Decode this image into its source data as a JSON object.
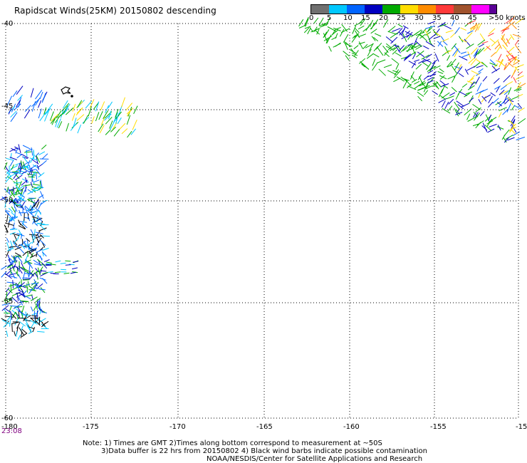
{
  "title": "Rapidscat Winds(25KM) 20150802 descending",
  "legend": {
    "labels": [
      "0",
      "5",
      "10",
      "15",
      "20",
      "25",
      "30",
      "35",
      "40",
      "45",
      ">50 knots"
    ],
    "colors": [
      "#707070",
      "#00c8ff",
      "#0064ff",
      "#0000c0",
      "#00aa00",
      "#ffdd00",
      "#ff8c00",
      "#ff3a3a",
      "#a0522d",
      "#ff00ff",
      "#5a0096"
    ]
  },
  "map": {
    "lon_labels": [
      "-180",
      "-175",
      "-170",
      "-165",
      "-160",
      "-155",
      "-15"
    ],
    "lat_labels": [
      "-40",
      "-45",
      "-50",
      "-55",
      "-60"
    ],
    "lon_range": [
      -180,
      -150
    ],
    "lat_range": [
      -40,
      -60
    ],
    "grid_style": "dotted",
    "time_label": "23:08"
  },
  "notes": {
    "line1": "Note: 1) Times are GMT 2)Times along bottom correspond to measurement at ~50S",
    "line2": "3)Data buffer is 22 hrs from 20150802 4) Black wind barbs indicate possible contamination",
    "line3": "NOAA/NESDIS/Center for Satellite Applications and Research"
  }
}
